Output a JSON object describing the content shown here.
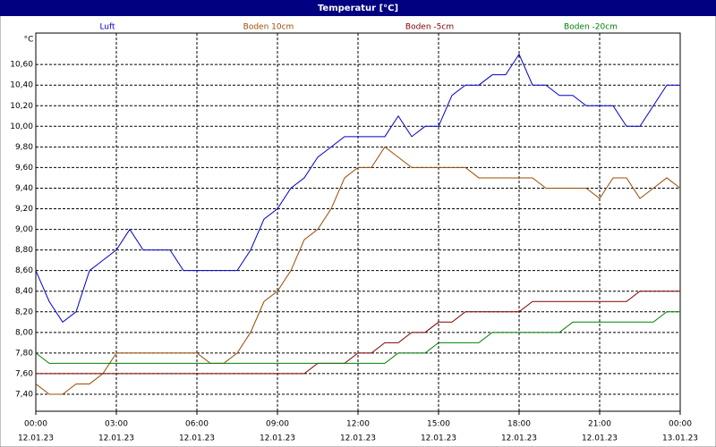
{
  "chart_data": {
    "type": "line",
    "title": "Temperatur [°C]",
    "y_label": "°C",
    "x": [
      0,
      0.5,
      1,
      1.5,
      2,
      2.5,
      3,
      3.5,
      4,
      4.5,
      5,
      5.5,
      6,
      6.5,
      7,
      7.5,
      8,
      8.5,
      9,
      9.5,
      10,
      10.5,
      11,
      11.5,
      12,
      12.5,
      13,
      13.5,
      14,
      14.5,
      15,
      15.5,
      16,
      16.5,
      17,
      17.5,
      18,
      18.5,
      19,
      19.5,
      20,
      20.5,
      21,
      21.5,
      22,
      22.5,
      23,
      23.5,
      24
    ],
    "series": [
      {
        "name": "Luft",
        "color": "#0000cc",
        "values": [
          8.6,
          8.3,
          8.1,
          8.2,
          8.6,
          8.7,
          8.8,
          9.0,
          8.8,
          8.8,
          8.8,
          8.6,
          8.6,
          8.6,
          8.6,
          8.6,
          8.8,
          9.1,
          9.2,
          9.4,
          9.5,
          9.7,
          9.8,
          9.9,
          9.9,
          9.9,
          9.9,
          10.1,
          9.9,
          10.0,
          10.0,
          10.3,
          10.4,
          10.4,
          10.5,
          10.5,
          10.7,
          10.4,
          10.4,
          10.3,
          10.3,
          10.2,
          10.2,
          10.2,
          10.0,
          10.0,
          10.2,
          10.4,
          10.4
        ]
      },
      {
        "name": "Boden 10cm",
        "color": "#994c00",
        "values": [
          7.5,
          7.4,
          7.4,
          7.5,
          7.5,
          7.6,
          7.8,
          7.8,
          7.8,
          7.8,
          7.8,
          7.8,
          7.8,
          7.7,
          7.7,
          7.8,
          8.0,
          8.3,
          8.4,
          8.6,
          8.9,
          9.0,
          9.2,
          9.5,
          9.6,
          9.6,
          9.8,
          9.7,
          9.6,
          9.6,
          9.6,
          9.6,
          9.6,
          9.5,
          9.5,
          9.5,
          9.5,
          9.5,
          9.4,
          9.4,
          9.4,
          9.4,
          9.3,
          9.5,
          9.5,
          9.3,
          9.4,
          9.5,
          9.4
        ]
      },
      {
        "name": "Boden -5cm",
        "color": "#800000",
        "values": [
          7.6,
          7.6,
          7.6,
          7.6,
          7.6,
          7.6,
          7.6,
          7.6,
          7.6,
          7.6,
          7.6,
          7.6,
          7.6,
          7.6,
          7.6,
          7.6,
          7.6,
          7.6,
          7.6,
          7.6,
          7.6,
          7.7,
          7.7,
          7.7,
          7.8,
          7.8,
          7.9,
          7.9,
          8.0,
          8.0,
          8.1,
          8.1,
          8.2,
          8.2,
          8.2,
          8.2,
          8.2,
          8.3,
          8.3,
          8.3,
          8.3,
          8.3,
          8.3,
          8.3,
          8.3,
          8.4,
          8.4,
          8.4,
          8.4
        ]
      },
      {
        "name": "Boden -20cm",
        "color": "#008000",
        "values": [
          7.8,
          7.7,
          7.7,
          7.7,
          7.7,
          7.7,
          7.7,
          7.7,
          7.7,
          7.7,
          7.7,
          7.7,
          7.7,
          7.7,
          7.7,
          7.7,
          7.7,
          7.7,
          7.7,
          7.7,
          7.7,
          7.7,
          7.7,
          7.7,
          7.7,
          7.7,
          7.7,
          7.8,
          7.8,
          7.8,
          7.9,
          7.9,
          7.9,
          7.9,
          8.0,
          8.0,
          8.0,
          8.0,
          8.0,
          8.0,
          8.1,
          8.1,
          8.1,
          8.1,
          8.1,
          8.1,
          8.1,
          8.2,
          8.2
        ]
      }
    ],
    "xlim": [
      0,
      24
    ],
    "xticks": [
      {
        "value": 0,
        "label": "00:00",
        "date": "12.01.23"
      },
      {
        "value": 3,
        "label": "03:00",
        "date": "12.01.23"
      },
      {
        "value": 6,
        "label": "06:00",
        "date": "12.01.23"
      },
      {
        "value": 9,
        "label": "09:00",
        "date": "12.01.23"
      },
      {
        "value": 12,
        "label": "12:00",
        "date": "12.01.23"
      },
      {
        "value": 15,
        "label": "15:00",
        "date": "12.01.23"
      },
      {
        "value": 18,
        "label": "18:00",
        "date": "12.01.23"
      },
      {
        "value": 21,
        "label": "21:00",
        "date": "12.01.23"
      },
      {
        "value": 24,
        "label": "00:00",
        "date": "13.01.23"
      }
    ],
    "ylim": [
      7.235,
      10.905
    ],
    "yticks": [
      {
        "value": 7.4,
        "label": "7,40"
      },
      {
        "value": 7.6,
        "label": "7,60"
      },
      {
        "value": 7.8,
        "label": "7,80"
      },
      {
        "value": 8.0,
        "label": "8,00"
      },
      {
        "value": 8.2,
        "label": "8,20"
      },
      {
        "value": 8.4,
        "label": "8,40"
      },
      {
        "value": 8.6,
        "label": "8,60"
      },
      {
        "value": 8.8,
        "label": "8,80"
      },
      {
        "value": 9.0,
        "label": "9,00"
      },
      {
        "value": 9.2,
        "label": "9,20"
      },
      {
        "value": 9.4,
        "label": "9,40"
      },
      {
        "value": 9.6,
        "label": "9,60"
      },
      {
        "value": 9.8,
        "label": "9,80"
      },
      {
        "value": 10.0,
        "label": "10,00"
      },
      {
        "value": 10.2,
        "label": "10,20"
      },
      {
        "value": 10.4,
        "label": "10,40"
      },
      {
        "value": 10.6,
        "label": "10,60"
      }
    ],
    "grid": true
  }
}
